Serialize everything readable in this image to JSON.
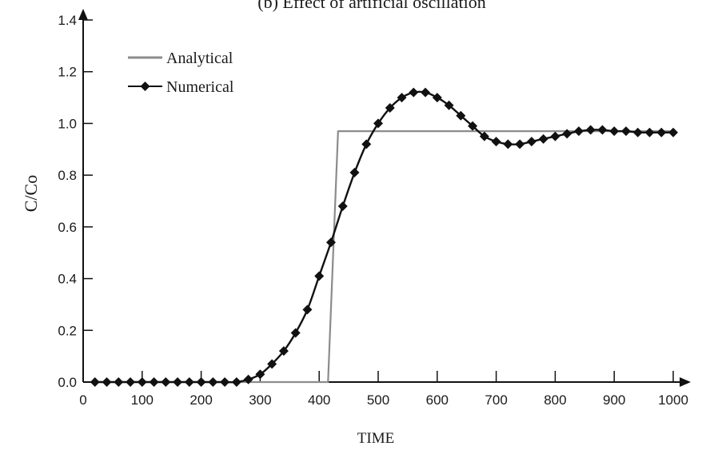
{
  "chart_data": {
    "type": "line",
    "title": "(b) Effect of artificial oscillation",
    "xlabel": "TIME",
    "ylabel": "C/Co",
    "xlim": [
      0,
      1000
    ],
    "ylim": [
      0,
      1.4
    ],
    "x_ticks": [
      0,
      100,
      200,
      300,
      400,
      500,
      600,
      700,
      800,
      900,
      1000
    ],
    "y_ticks": [
      0.0,
      0.2,
      0.4,
      0.6,
      0.8,
      1.0,
      1.2,
      1.4
    ],
    "x_tick_labels": [
      "0",
      "100",
      "200",
      "300",
      "400",
      "500",
      "600",
      "700",
      "800",
      "900",
      "1000"
    ],
    "y_tick_labels": [
      "0.0",
      "0.2",
      "0.4",
      "0.6",
      "0.8",
      "1.0",
      "1.2",
      "1.4"
    ],
    "legend_position": "top-left",
    "grid": false,
    "series": [
      {
        "name": "Analytical",
        "color": "#8c8c8c",
        "marker": "none",
        "x": [
          20,
          415,
          432,
          1005
        ],
        "y": [
          0.0,
          0.0,
          0.97,
          0.97
        ]
      },
      {
        "name": "Numerical",
        "color": "#111111",
        "marker": "diamond",
        "x": [
          20,
          40,
          60,
          80,
          100,
          120,
          140,
          160,
          180,
          200,
          220,
          240,
          260,
          280,
          300,
          320,
          340,
          360,
          380,
          400,
          420,
          440,
          460,
          480,
          500,
          520,
          540,
          560,
          580,
          600,
          620,
          640,
          660,
          680,
          700,
          720,
          740,
          760,
          780,
          800,
          820,
          840,
          860,
          880,
          900,
          920,
          940,
          960,
          980,
          1000
        ],
        "y": [
          0.0,
          0.0,
          0.0,
          0.0,
          0.0,
          0.0,
          0.0,
          0.0,
          0.0,
          0.0,
          0.0,
          0.0,
          0.0,
          0.01,
          0.03,
          0.07,
          0.12,
          0.19,
          0.28,
          0.41,
          0.54,
          0.68,
          0.81,
          0.92,
          1.0,
          1.06,
          1.1,
          1.12,
          1.12,
          1.1,
          1.07,
          1.03,
          0.99,
          0.95,
          0.93,
          0.92,
          0.92,
          0.93,
          0.94,
          0.95,
          0.96,
          0.97,
          0.975,
          0.975,
          0.97,
          0.97,
          0.965,
          0.965,
          0.965,
          0.965
        ]
      }
    ]
  }
}
